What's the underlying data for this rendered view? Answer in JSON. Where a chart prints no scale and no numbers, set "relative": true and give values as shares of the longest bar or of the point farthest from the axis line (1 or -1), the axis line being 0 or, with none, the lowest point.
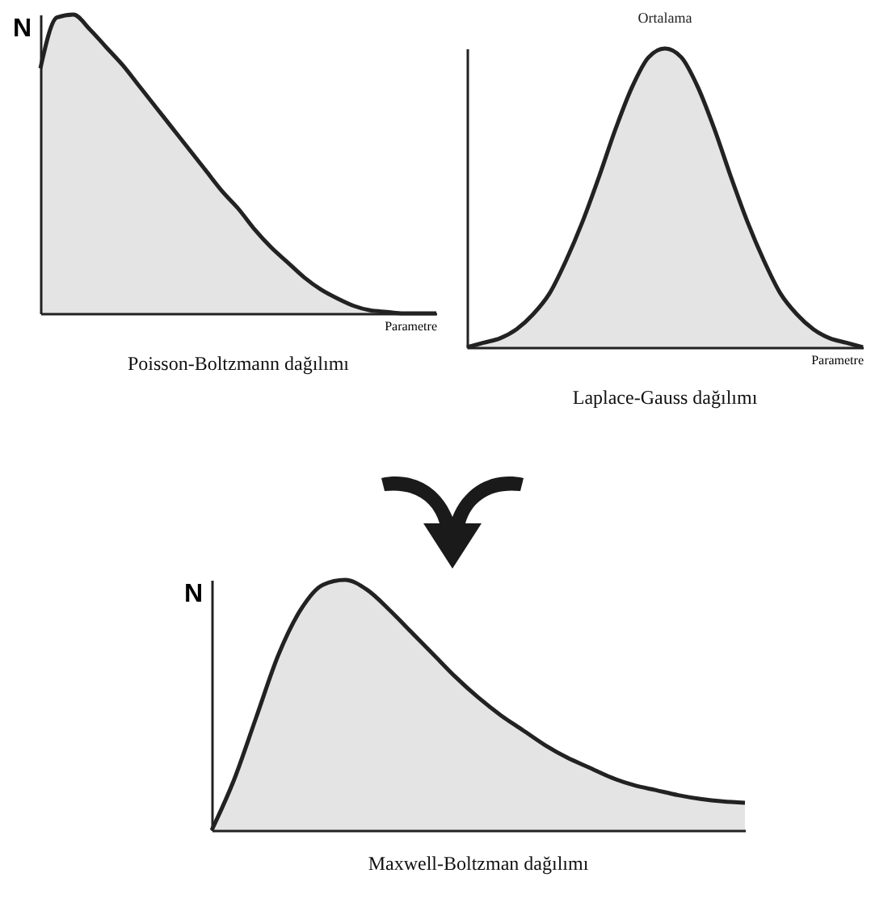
{
  "chart_data": [
    {
      "type": "area",
      "title": "Poisson-Boltzmann dağılımı",
      "xlabel": "Parametre",
      "ylabel": "N",
      "relative": true,
      "tick_labels": false,
      "categories": [
        null,
        null,
        null,
        null,
        null,
        null,
        null,
        null,
        null,
        null,
        null,
        null,
        null,
        null,
        null,
        null,
        null,
        null,
        null,
        null,
        null,
        null,
        null,
        null,
        null
      ],
      "series": [
        {
          "color": "#222222",
          "values": [
            0.82,
            0.99,
            1.0,
            0.95,
            0.89,
            0.83,
            0.76,
            0.69,
            0.62,
            0.55,
            0.48,
            0.41,
            0.35,
            0.28,
            0.22,
            0.17,
            0.12,
            0.08,
            0.05,
            0.025,
            0.01,
            0.005,
            0,
            0,
            0
          ]
        }
      ]
    },
    {
      "type": "area",
      "title": "Laplace-Gauss dağılımı",
      "xlabel": "Parametre",
      "relative": true,
      "tick_labels": false,
      "annotations": [
        {
          "text": "Ortalama",
          "y": 1
        }
      ],
      "categories": [
        null,
        null,
        null,
        null,
        null,
        null,
        null,
        null,
        null,
        null,
        null,
        null,
        null,
        null,
        null,
        null,
        null,
        null,
        null,
        null,
        null,
        null,
        null,
        null,
        null
      ],
      "series": [
        {
          "color": "#222222",
          "values": [
            0,
            0.015,
            0.03,
            0.06,
            0.11,
            0.18,
            0.29,
            0.42,
            0.57,
            0.73,
            0.87,
            0.97,
            1.0,
            0.97,
            0.87,
            0.73,
            0.57,
            0.42,
            0.29,
            0.18,
            0.11,
            0.06,
            0.03,
            0.015,
            0
          ]
        }
      ]
    },
    {
      "type": "area",
      "title": "Maxwell-Boltzman dağılımı",
      "ylabel": "N",
      "relative": true,
      "tick_labels": false,
      "categories": [
        null,
        null,
        null,
        null,
        null,
        null,
        null,
        null,
        null,
        null,
        null,
        null,
        null,
        null,
        null,
        null,
        null,
        null,
        null,
        null,
        null,
        null,
        null,
        null,
        null
      ],
      "series": [
        {
          "color": "#222222",
          "values": [
            0,
            0.2,
            0.45,
            0.7,
            0.88,
            0.98,
            1.0,
            0.96,
            0.88,
            0.79,
            0.7,
            0.61,
            0.53,
            0.46,
            0.4,
            0.34,
            0.29,
            0.25,
            0.21,
            0.18,
            0.16,
            0.14,
            0.125,
            0.115,
            0.11
          ]
        }
      ]
    }
  ]
}
